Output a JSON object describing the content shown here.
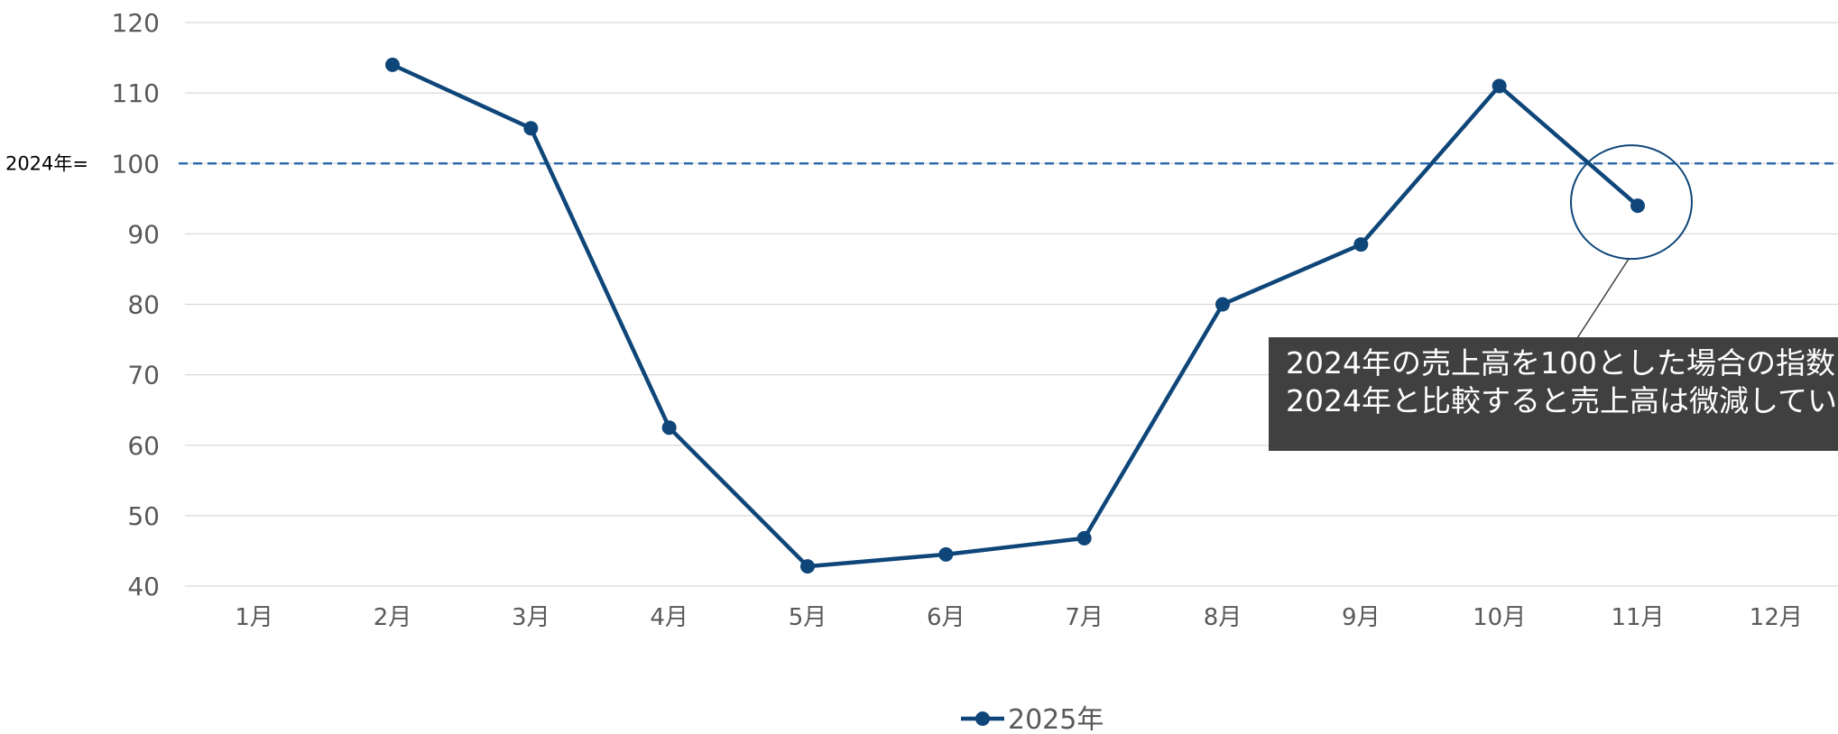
{
  "colors": {
    "series": "#0f4679",
    "reference_line": "#2f6bb1",
    "grid": "#d9d9d9",
    "tick_text": "#595959",
    "annotation_bg": "#404040",
    "annotation_text": "#ffffff",
    "callout": "#0f4679"
  },
  "chart_data": {
    "type": "line",
    "categories": [
      "1月",
      "2月",
      "3月",
      "4月",
      "5月",
      "6月",
      "7月",
      "8月",
      "9月",
      "10月",
      "11月",
      "12月"
    ],
    "series": [
      {
        "name": "2025年",
        "values": [
          null,
          114,
          105,
          62.5,
          42.8,
          44.5,
          46.8,
          80,
          88.5,
          111,
          94,
          null
        ]
      }
    ],
    "ylim": [
      40,
      120
    ],
    "yticks": [
      40,
      50,
      60,
      70,
      80,
      90,
      100,
      110,
      120
    ],
    "grid": true,
    "legend_position": "bottom",
    "reference_line": {
      "value": 100,
      "label": "2024年="
    },
    "annotation": {
      "target_category": "11月",
      "lines": [
        "2024年の売上高を100とした場合の指数",
        "2024年と比較すると売上高は微減してい"
      ]
    }
  }
}
